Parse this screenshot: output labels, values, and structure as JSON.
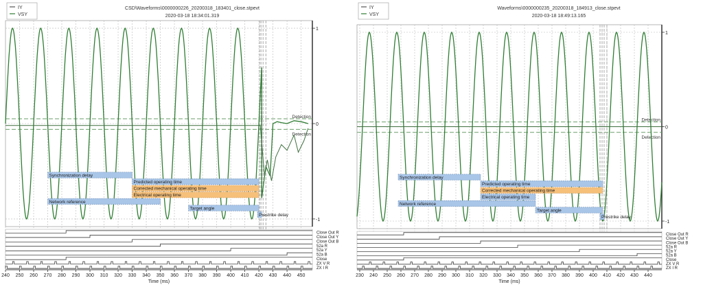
{
  "colors": {
    "wave": "#2e7d32",
    "level": "#6a9e6a",
    "blue_bar": "#a9c6e8",
    "blue_border": "#6f8fb8",
    "orange_bar": "#f6c07a",
    "orange_border": "#c8935a",
    "marker": "#a8a8a8",
    "grid": "#b8b8b8"
  },
  "chart_data": [
    {
      "type": "line",
      "title": "CSD\\Waveforms\\0000000226_20200318_183401_close.stpevt",
      "subtitle": "2020-03-18 18:34:01.319",
      "legend": [
        "IY",
        "VSY"
      ],
      "legend_position": "top-left",
      "xlabel": "Time (ms)",
      "xlim": [
        240,
        458
      ],
      "x_ticks": [
        240,
        250,
        260,
        270,
        280,
        290,
        300,
        310,
        320,
        330,
        340,
        350,
        360,
        370,
        380,
        390,
        400,
        410,
        420,
        430,
        440,
        450
      ],
      "ylim": [
        -1.08,
        1.08
      ],
      "y_ticks": [
        {
          "value": 1,
          "label": "1"
        },
        {
          "value": 0,
          "label": "0"
        },
        {
          "value": -1,
          "label": "-1"
        }
      ],
      "grid": true,
      "series": [
        {
          "name": "VSY",
          "kind": "sine",
          "amplitude": 1.0,
          "period_ms": 20,
          "first_peak_ms": 245,
          "until_ms": 422,
          "after_event": [
            [
              422,
              -0.78
            ],
            [
              425,
              -0.45
            ],
            [
              428,
              -0.55
            ],
            [
              430,
              0.0
            ],
            [
              433,
              0.02
            ],
            [
              436,
              0.01
            ],
            [
              440,
              0.0
            ],
            [
              445,
              0.03
            ],
            [
              450,
              0.02
            ],
            [
              455,
              0.0
            ]
          ]
        },
        {
          "name": "IY",
          "kind": "trace",
          "points": [
            [
              240,
              -0.02
            ],
            [
              421,
              -0.02
            ],
            [
              424,
              -0.55
            ],
            [
              426,
              -0.38
            ],
            [
              429,
              -0.6
            ],
            [
              432,
              -0.35
            ],
            [
              436,
              -0.22
            ],
            [
              440,
              -0.28
            ],
            [
              445,
              -0.12
            ],
            [
              448,
              -0.3
            ],
            [
              452,
              -0.18
            ],
            [
              455,
              -0.05
            ]
          ]
        }
      ],
      "levels": [
        {
          "label": "Detection",
          "value": 0.05
        },
        {
          "label": "Detection",
          "value": -0.06
        }
      ],
      "markers_x": [
        420.5,
        421.5,
        423,
        425
      ],
      "gantt": [
        {
          "label": "Synchronization delay",
          "start": 270,
          "end": 330,
          "color": "blue"
        },
        {
          "label": "Predicted operating time",
          "start": 330,
          "end": 420,
          "color": "blue"
        },
        {
          "label": "Corrected mechanical operating time",
          "start": 330,
          "end": 420,
          "color": "orange"
        },
        {
          "label": "Electrical operating time",
          "start": 330,
          "end": 420,
          "color": "orange"
        },
        {
          "label": "Network reference",
          "start": 270,
          "end": 350,
          "color": "blue"
        },
        {
          "label": "Target angle",
          "start": 370,
          "end": 420,
          "color": "blue"
        },
        {
          "label": "Prestrike delay",
          "start": 419,
          "end": 422,
          "color": "blue"
        }
      ],
      "digital_channels": [
        {
          "name": "Close Out R",
          "edges": [
            283
          ]
        },
        {
          "name": "Close Out Y",
          "edges": [
            300
          ]
        },
        {
          "name": "Close Out B",
          "edges": [
            330
          ]
        },
        {
          "name": "52a R",
          "edges": [
            350
          ]
        },
        {
          "name": "52a Y",
          "edges": [
            400
          ]
        },
        {
          "name": "52a B",
          "edges": [
            440
          ]
        },
        {
          "name": "Close",
          "edges": [
            283
          ]
        },
        {
          "name": "ZX V R",
          "pulse_period_ms": 10,
          "pulse_phase_ms": 245
        },
        {
          "name": "ZX I R",
          "pulse_period_ms": 10,
          "pulse_phase_ms": 250
        }
      ]
    },
    {
      "type": "line",
      "title": "Waveforms\\0000000235_20200318_184913_close.stpevt",
      "subtitle": "2020-03-18 18:49:13.165",
      "legend": [
        "IY",
        "VSY"
      ],
      "legend_position": "top-left",
      "xlabel": "Time (ms)",
      "xlim": [
        228,
        450
      ],
      "x_ticks": [
        230,
        240,
        250,
        260,
        270,
        280,
        290,
        300,
        310,
        320,
        330,
        340,
        350,
        360,
        370,
        380,
        390,
        400,
        410,
        420,
        430,
        440
      ],
      "ylim": [
        -1.08,
        1.08
      ],
      "y_ticks": [
        {
          "value": 1,
          "label": "1"
        },
        {
          "value": 0,
          "label": "0"
        },
        {
          "value": -1,
          "label": "-1"
        }
      ],
      "grid": true,
      "series": [
        {
          "name": "VSY",
          "kind": "sine",
          "amplitude": 1.0,
          "period_ms": 20,
          "first_peak_ms": 237,
          "until_ms": 450,
          "after_event": []
        },
        {
          "name": "IY",
          "kind": "trace",
          "points": [
            [
              228,
              0.0
            ],
            [
              450,
              0.0
            ]
          ]
        }
      ],
      "levels": [
        {
          "label": "Detection",
          "value": 0.05
        },
        {
          "label": "Detection",
          "value": -0.06
        }
      ],
      "markers_x": [
        405,
        406.5,
        408,
        410
      ],
      "gantt": [
        {
          "label": "Synchronization delay",
          "start": 258,
          "end": 318,
          "color": "blue"
        },
        {
          "label": "Predicted operating time",
          "start": 318,
          "end": 407,
          "color": "blue"
        },
        {
          "label": "Corrected mechanical operating time",
          "start": 318,
          "end": 407,
          "color": "orange"
        },
        {
          "label": "Electrical operating time",
          "start": 318,
          "end": 358,
          "color": "blue"
        },
        {
          "label": "Network reference",
          "start": 258,
          "end": 358,
          "color": "blue"
        },
        {
          "label": "Target angle",
          "start": 358,
          "end": 407,
          "color": "blue"
        },
        {
          "label": "Prestrike delay",
          "start": 405,
          "end": 408,
          "color": "blue"
        }
      ],
      "digital_channels": [
        {
          "name": "Close Out R",
          "edges": [
            262
          ]
        },
        {
          "name": "Close Out Y",
          "edges": [
            288
          ]
        },
        {
          "name": "Close Out B",
          "edges": [
            318
          ]
        },
        {
          "name": "52a R",
          "edges": [
            345
          ]
        },
        {
          "name": "52a Y",
          "edges": [
            390
          ]
        },
        {
          "name": "52a B",
          "edges": [
            432
          ]
        },
        {
          "name": "Close",
          "edges": [
            262
          ]
        },
        {
          "name": "ZX V R",
          "pulse_period_ms": 10,
          "pulse_phase_ms": 237
        },
        {
          "name": "ZX I R",
          "pulse_period_ms": 10,
          "pulse_phase_ms": 242
        }
      ]
    }
  ]
}
